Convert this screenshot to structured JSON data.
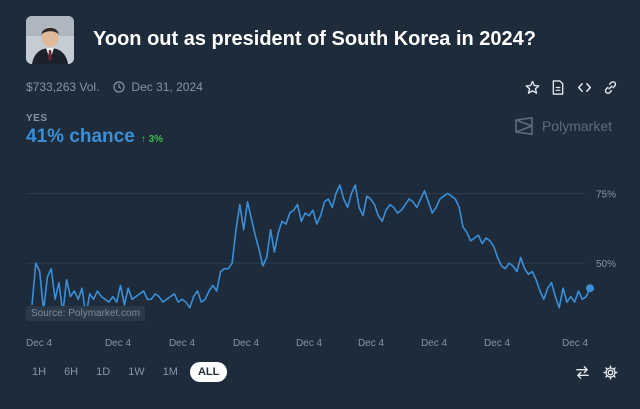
{
  "market": {
    "title": "Yoon out as president of South Korea in 2024?",
    "volume": "$733,263 Vol.",
    "end_date": "Dec 31, 2024",
    "outcome_label": "YES",
    "chance": "41% chance",
    "change": "↑ 3%",
    "brand": "Polymarket",
    "watermark": "Source: Polymarket.com"
  },
  "actions": [
    "star-icon",
    "document-icon",
    "code-icon",
    "link-icon"
  ],
  "ranges": [
    "1H",
    "6H",
    "1D",
    "1W",
    "1M",
    "ALL"
  ],
  "active_range": "ALL",
  "colors": {
    "accent": "#3b8fd9",
    "positive": "#3fb950",
    "bg": "#1d2b3a"
  },
  "chart_data": {
    "type": "line",
    "title": "",
    "xlabel": "",
    "ylabel": "",
    "ylim": [
      26,
      87
    ],
    "yticks": [
      "75%",
      "50%"
    ],
    "ytick_values": [
      75,
      50
    ],
    "x_labels": [
      "Dec 4",
      "Dec 4",
      "Dec 4",
      "Dec 4",
      "Dec 4",
      "Dec 4",
      "Dec 4",
      "Dec 4",
      "Dec 4"
    ],
    "series": [
      {
        "name": "Yes",
        "values": [
          35,
          50,
          47,
          33,
          45,
          48,
          37,
          43,
          32,
          44,
          38,
          40,
          37,
          41,
          31,
          39,
          37,
          40,
          38,
          37,
          36,
          38,
          36,
          42,
          35,
          41,
          37,
          38,
          39,
          40,
          37,
          37,
          39,
          38,
          36,
          37,
          38,
          39,
          36,
          37,
          36,
          34,
          38,
          40,
          36,
          37,
          40,
          42,
          40,
          47,
          48,
          48,
          50,
          62,
          71,
          62,
          72,
          66,
          60,
          55,
          49,
          52,
          62,
          54,
          61,
          65,
          64,
          68,
          69,
          71,
          65,
          68,
          67,
          69,
          64,
          67,
          72,
          73,
          70,
          75,
          78,
          73,
          70,
          75,
          78,
          70,
          67,
          74,
          73,
          71,
          67,
          65,
          69,
          71,
          70,
          68,
          69,
          71,
          73,
          72,
          70,
          73,
          76,
          72,
          68,
          70,
          73,
          74,
          75,
          74,
          73,
          70,
          63,
          61,
          58,
          59,
          60,
          57,
          59,
          58,
          56,
          52,
          49,
          48,
          50,
          49,
          47,
          52,
          48,
          46,
          47,
          44,
          40,
          37,
          41,
          43,
          38,
          34,
          41,
          36,
          38,
          36,
          40,
          37,
          38,
          41
        ]
      }
    ]
  }
}
